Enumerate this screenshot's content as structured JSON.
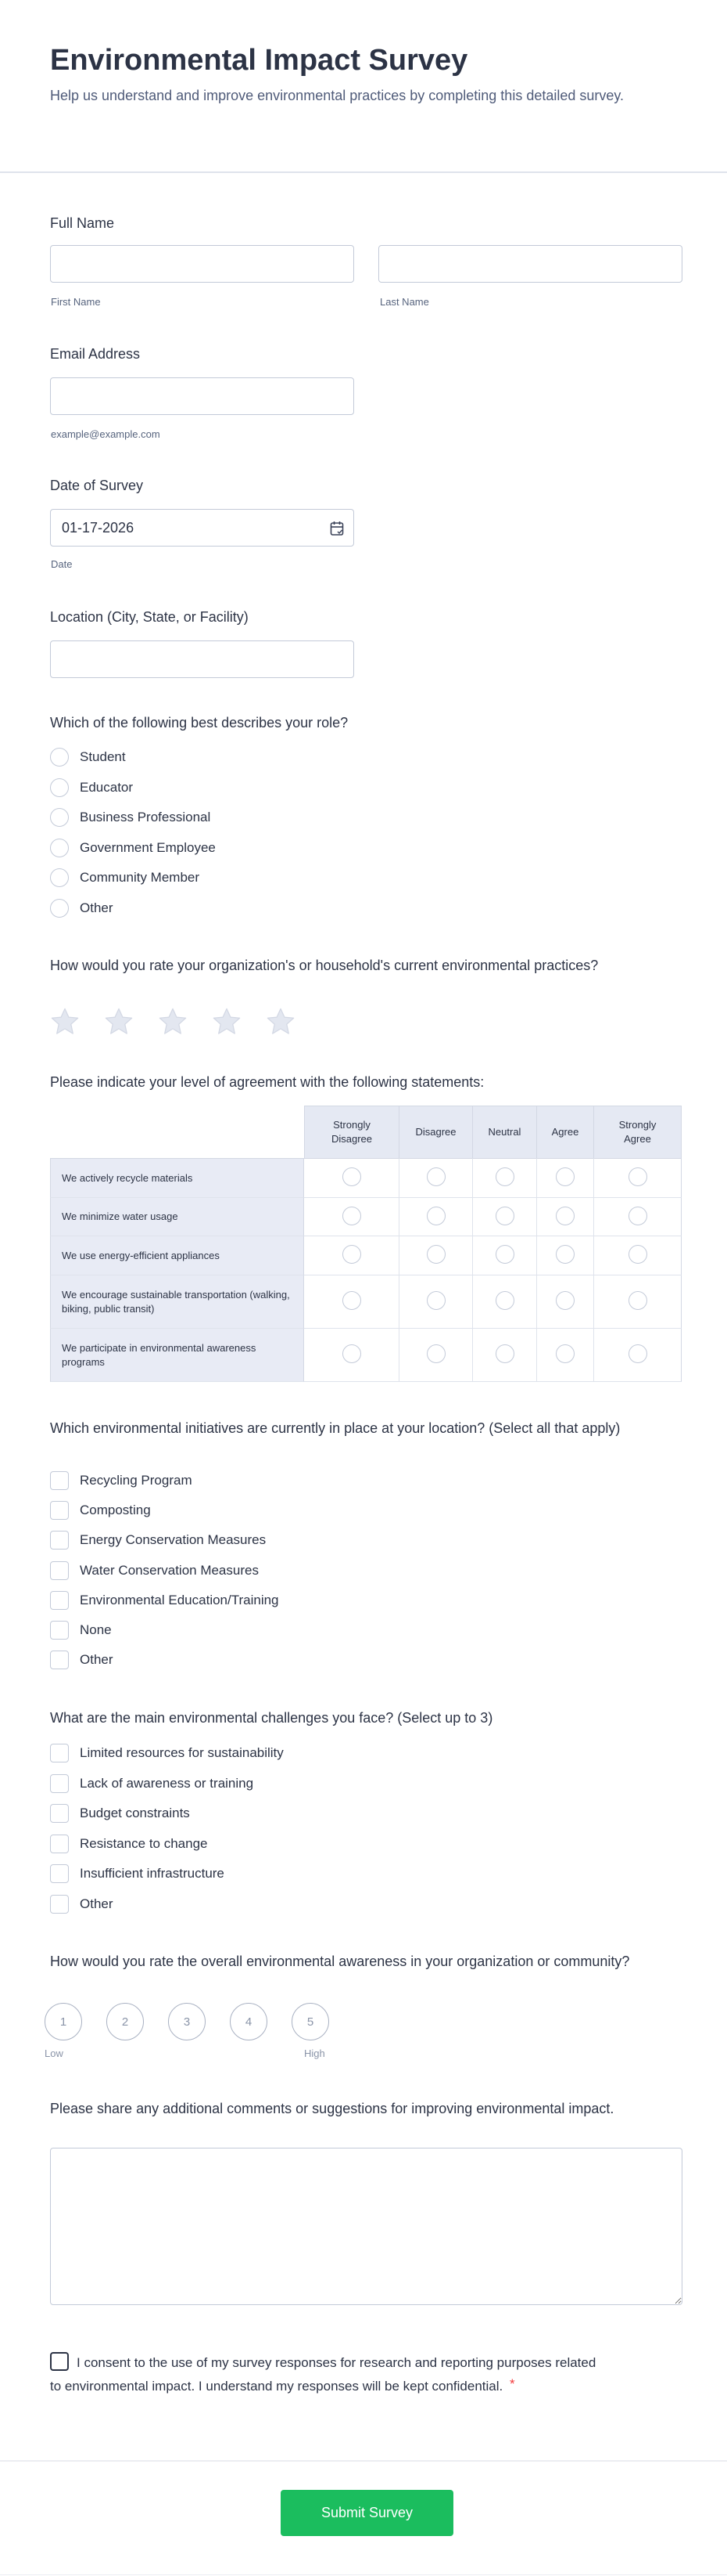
{
  "header": {
    "title": "Environmental Impact Survey",
    "subtitle": "Help us understand and improve environmental practices by completing this detailed survey."
  },
  "full_name": {
    "label": "Full Name",
    "first_sublabel": "First Name",
    "last_sublabel": "Last Name",
    "first_value": "",
    "last_value": ""
  },
  "email": {
    "label": "Email Address",
    "sublabel": "example@example.com",
    "value": ""
  },
  "date": {
    "label": "Date of Survey",
    "value": "01-17-2026",
    "sublabel": "Date",
    "icon": "calendar-icon"
  },
  "location": {
    "label": "Location (City, State, or Facility)",
    "value": ""
  },
  "role": {
    "question": "Which of the following best describes your role?",
    "options": [
      "Student",
      "Educator",
      "Business Professional",
      "Government Employee",
      "Community Member",
      "Other"
    ]
  },
  "practices_rating": {
    "question": "How would you rate your organization's or household's current environmental practices?",
    "max_stars": 5,
    "value": 0,
    "star_color": "#e3e7f0"
  },
  "agreement": {
    "question": "Please indicate your level of agreement with the following statements:",
    "columns": [
      "Strongly Disagree",
      "Disagree",
      "Neutral",
      "Agree",
      "Strongly Agree"
    ],
    "rows": [
      "We actively recycle materials",
      "We minimize water usage",
      "We use energy-efficient appliances",
      "We encourage sustainable transportation (walking, biking, public transit)",
      "We participate in environmental awareness programs"
    ]
  },
  "initiatives": {
    "question": "Which environmental initiatives are currently in place at your location? (Select all that apply)",
    "options": [
      "Recycling Program",
      "Composting",
      "Energy Conservation Measures",
      "Water Conservation Measures",
      "Environmental Education/Training",
      "None",
      "Other"
    ]
  },
  "challenges": {
    "question": "What are the main environmental challenges you face? (Select up to 3)",
    "options": [
      "Limited resources for sustainability",
      "Lack of awareness or training",
      "Budget constraints",
      "Resistance to change",
      "Insufficient infrastructure",
      "Other"
    ]
  },
  "awareness": {
    "question": "How would you rate the overall environmental awareness in your organization or community?",
    "scale": [
      "1",
      "2",
      "3",
      "4",
      "5"
    ],
    "low_label": "Low",
    "high_label": "High"
  },
  "comments": {
    "question": "Please share any additional comments or suggestions for improving environmental impact.",
    "value": ""
  },
  "consent": {
    "text": "I consent to the use of my survey responses for research and reporting purposes related to environmental impact. I understand my responses will be kept confidential.",
    "required_mark": "*",
    "required_color": "#f23a3c"
  },
  "submit": {
    "label": "Submit Survey",
    "color": "#1bbd5e"
  }
}
